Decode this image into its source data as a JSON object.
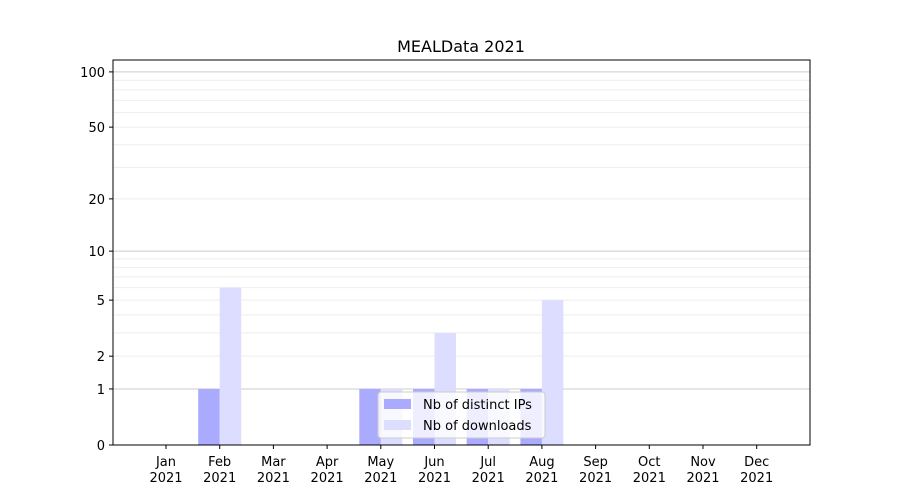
{
  "chart_data": {
    "type": "bar",
    "title": "MEALData 2021",
    "xlabel": "",
    "ylabel": "",
    "y_scale": "log(1+y)",
    "ylim": [
      0,
      116
    ],
    "y_ticks": [
      0,
      1,
      2,
      5,
      10,
      20,
      50,
      100
    ],
    "grid": true,
    "legend_position": "lower center",
    "categories": [
      "Jan\n2021",
      "Feb\n2021",
      "Mar\n2021",
      "Apr\n2021",
      "May\n2021",
      "Jun\n2021",
      "Jul\n2021",
      "Aug\n2021",
      "Sep\n2021",
      "Oct\n2021",
      "Nov\n2021",
      "Dec\n2021"
    ],
    "series": [
      {
        "name": "Nb of distinct IPs",
        "color": "#aaaaff",
        "values": [
          0,
          1,
          0,
          0,
          1,
          1,
          1,
          1,
          0,
          0,
          0,
          0
        ]
      },
      {
        "name": "Nb of downloads",
        "color": "#ddddff",
        "values": [
          0,
          6,
          0,
          0,
          1,
          3,
          1,
          5,
          0,
          0,
          0,
          0
        ]
      }
    ]
  }
}
